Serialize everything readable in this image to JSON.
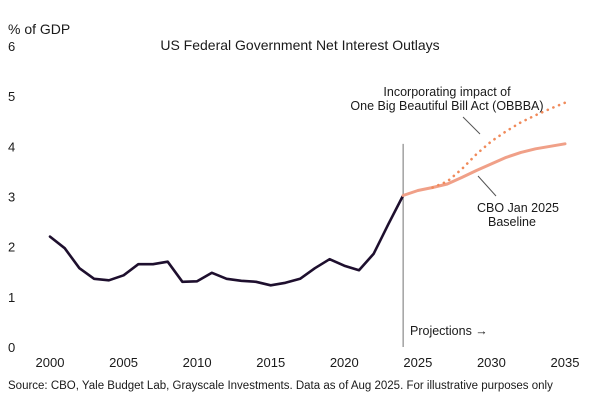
{
  "chart_data": {
    "type": "line",
    "title": "US Federal Government Net Interest Outlays",
    "ylabel": "% of GDP",
    "xlabel": "",
    "xlim": [
      2000,
      2035
    ],
    "ylim": [
      0,
      6
    ],
    "x_ticks": [
      "2000",
      "2005",
      "2010",
      "2015",
      "2020",
      "2025",
      "2030",
      "2035"
    ],
    "y_ticks": [
      "0",
      "1",
      "2",
      "3",
      "4",
      "5",
      "6"
    ],
    "grid": false,
    "series": [
      {
        "color": "#1e0f2e",
        "style": "solid",
        "x": [
          2000,
          2001,
          2002,
          2003,
          2004,
          2005,
          2006,
          2007,
          2008,
          2009,
          2010,
          2011,
          2012,
          2013,
          2014,
          2015,
          2016,
          2017,
          2018,
          2019,
          2020,
          2021,
          2022,
          2023,
          2024
        ],
        "y": [
          2.2,
          1.97,
          1.57,
          1.36,
          1.33,
          1.43,
          1.65,
          1.65,
          1.7,
          1.3,
          1.31,
          1.48,
          1.36,
          1.32,
          1.3,
          1.23,
          1.28,
          1.36,
          1.57,
          1.75,
          1.62,
          1.53,
          1.86,
          2.45,
          3.02
        ]
      },
      {
        "name": "CBO Jan 2025 Baseline",
        "color": "#f0a088",
        "style": "solid",
        "x": [
          2024,
          2025,
          2026,
          2027,
          2028,
          2029,
          2030,
          2031,
          2032,
          2033,
          2034,
          2035
        ],
        "y": [
          3.02,
          3.12,
          3.18,
          3.25,
          3.38,
          3.52,
          3.65,
          3.78,
          3.88,
          3.95,
          4.0,
          4.05
        ]
      },
      {
        "name": "Incorporating impact of One Big Beautiful Bill Act (OBBBA)",
        "color": "#f08a5a",
        "style": "dotted",
        "x": [
          2026,
          2027,
          2028,
          2029,
          2030,
          2031,
          2032,
          2033,
          2034,
          2035
        ],
        "y": [
          3.18,
          3.3,
          3.55,
          3.85,
          4.1,
          4.3,
          4.48,
          4.62,
          4.75,
          4.87
        ]
      }
    ],
    "vline": {
      "x": 2024
    },
    "annotations": {
      "obbba_line1": "Incorporating impact of",
      "obbba_line2": "One Big Beautiful Bill Act (OBBBA)",
      "baseline_line1": "CBO Jan 2025",
      "baseline_line2": "Baseline",
      "projections": "Projections →"
    },
    "source": "Source: CBO, Yale Budget Lab, Grayscale Investments. Data as of Aug 2025. For illustrative purposes only",
    "colors": {
      "history": "#1e0f2e",
      "baseline": "#f0a088",
      "obbba": "#f08a5a",
      "vline": "#8a8a8a"
    }
  }
}
